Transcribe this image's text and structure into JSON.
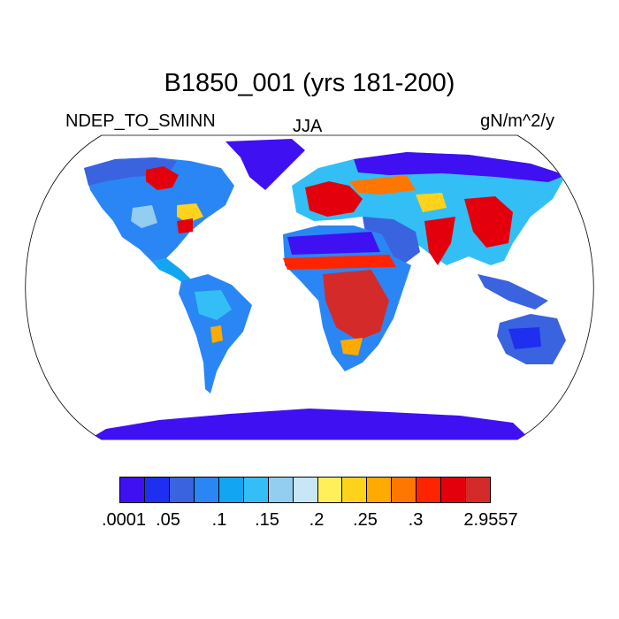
{
  "title": "B1850_001 (yrs 181-200)",
  "variable": "NDEP_TO_SMINN",
  "season": "JJA",
  "units": "gN/m^2/y",
  "colorbar": {
    "colors": [
      "#3f10f2",
      "#1f2ff0",
      "#3a63e0",
      "#2a86f5",
      "#12a6f2",
      "#33bff5",
      "#93cdef",
      "#c8e6f7",
      "#fff05a",
      "#ffd21c",
      "#ffaa00",
      "#ff7600",
      "#ff2400",
      "#e3000c",
      "#d42a2a"
    ],
    "labels": [
      ".0001",
      ".05",
      ".1",
      ".15",
      ".2",
      ".25",
      ".3",
      "2.9557"
    ]
  }
}
